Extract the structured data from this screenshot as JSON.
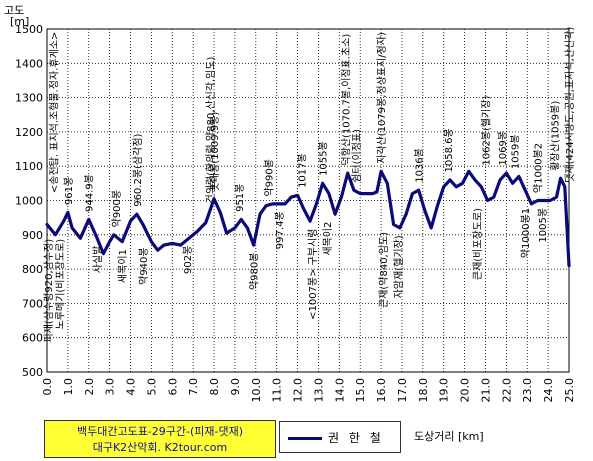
{
  "chart_data": {
    "type": "line",
    "title": "백두대간고도표-29구간-(피재-댓재)",
    "subtitle": "대구K2산악회.  K2tour.com",
    "xlabel": "도상거리 [km]",
    "ylabel": "고도",
    "yunit": "[m]",
    "ylim": [
      500,
      1500
    ],
    "xlim": [
      0,
      25
    ],
    "grid": true,
    "legend_position": "bottom-center",
    "line_color": "#0a0a78",
    "x_ticks": [
      "0.0",
      "1.0",
      "2.0",
      "3.0",
      "4.0",
      "5.0",
      "6.0",
      "7.0",
      "8.0",
      "9.0",
      "10.0",
      "11.0",
      "12.0",
      "13.0",
      "14.0",
      "15.0",
      "16.0",
      "17.0",
      "18.0",
      "19.0",
      "20.0",
      "21.0",
      "22.0",
      "23.0",
      "24.0",
      "25.0"
    ],
    "y_ticks": [
      "500",
      "600",
      "700",
      "800",
      "900",
      "1000",
      "1100",
      "1200",
      "1300",
      "1400",
      "1500"
    ],
    "series": [
      {
        "name": "권 한 철",
        "x": [
          0,
          0.4,
          0.8,
          1.0,
          1.2,
          1.6,
          2.0,
          2.4,
          2.7,
          3.0,
          3.2,
          3.6,
          4.0,
          4.3,
          4.6,
          5.0,
          5.3,
          5.6,
          6.0,
          6.4,
          6.8,
          7.2,
          7.6,
          7.8,
          8.0,
          8.3,
          8.6,
          9.0,
          9.3,
          9.6,
          9.9,
          10.2,
          10.5,
          10.8,
          11.0,
          11.4,
          11.7,
          12.0,
          12.3,
          12.6,
          12.9,
          13.2,
          13.5,
          13.8,
          14.1,
          14.4,
          14.7,
          15.0,
          15.3,
          15.6,
          15.8,
          16.0,
          16.3,
          16.6,
          16.9,
          17.2,
          17.5,
          17.8,
          18.1,
          18.4,
          18.7,
          19.0,
          19.3,
          19.6,
          19.9,
          20.2,
          20.5,
          20.8,
          21.1,
          21.4,
          21.7,
          22.0,
          22.3,
          22.6,
          22.9,
          23.2,
          23.5,
          23.8,
          24.1,
          24.4,
          24.6,
          24.8,
          25.0
        ],
        "values": [
          930,
          900,
          940,
          965,
          920,
          890,
          945,
          890,
          845,
          880,
          900,
          880,
          940,
          960,
          930,
          880,
          855,
          870,
          875,
          870,
          890,
          910,
          935,
          970,
          1005,
          965,
          905,
          920,
          945,
          920,
          870,
          960,
          985,
          990,
          990,
          990,
          1010,
          1015,
          975,
          940,
          990,
          1050,
          1020,
          960,
          1010,
          1080,
          1030,
          1020,
          1020,
          1020,
          1025,
          1085,
          1050,
          930,
          920,
          960,
          1020,
          1030,
          970,
          920,
          985,
          1040,
          1060,
          1040,
          1050,
          1085,
          1060,
          1040,
          1000,
          1010,
          1060,
          1080,
          1050,
          1070,
          1030,
          990,
          1000,
          1000,
          1000,
          1010,
          1065,
          1040,
          810
        ]
      }
    ],
    "annotations": [
      {
        "x": 0.05,
        "y": 900,
        "text": "피재(삼수령920,삼수정)",
        "side": "below"
      },
      {
        "x": 0.6,
        "y": 900,
        "text": "노루메기(비포장도로)",
        "side": "below"
      },
      {
        "x": 0.3,
        "y": 1010,
        "text": "<송전탑. 표지석.조형물.정자.휴게소>",
        "side": "above"
      },
      {
        "x": 1.0,
        "y": 975,
        "text": "961봉",
        "side": "above"
      },
      {
        "x": 2.0,
        "y": 955,
        "text": "944.9봉",
        "side": "above"
      },
      {
        "x": 2.4,
        "y": 880,
        "text": "사실발",
        "side": "below"
      },
      {
        "x": 3.3,
        "y": 910,
        "text": "약900봉",
        "side": "above"
      },
      {
        "x": 3.6,
        "y": 870,
        "text": "새목이1",
        "side": "below"
      },
      {
        "x": 4.3,
        "y": 970,
        "text": "960.2봉(삼각점)",
        "side": "above"
      },
      {
        "x": 4.6,
        "y": 875,
        "text": "약940봉",
        "side": "below"
      },
      {
        "x": 6.7,
        "y": 880,
        "text": "902봉",
        "side": "below"
      },
      {
        "x": 7.8,
        "y": 980,
        "text": "건의령(한의령,약880,산신각,임도)",
        "side": "above"
      },
      {
        "x": 8.0,
        "y": 1015,
        "text": "푯대봉(1009.9봉)",
        "side": "above"
      },
      {
        "x": 9.2,
        "y": 955,
        "text": "951봉",
        "side": "above"
      },
      {
        "x": 9.9,
        "y": 860,
        "text": "약980봉",
        "side": "below"
      },
      {
        "x": 10.6,
        "y": 1000,
        "text": "약990봉",
        "side": "above"
      },
      {
        "x": 11.1,
        "y": 980,
        "text": "997.4봉",
        "side": "below"
      },
      {
        "x": 12.2,
        "y": 1025,
        "text": "1017봉",
        "side": "above"
      },
      {
        "x": 12.7,
        "y": 930,
        "text": "<1007봉> 구부시령",
        "side": "below"
      },
      {
        "x": 13.2,
        "y": 1060,
        "text": "1055봉",
        "side": "above"
      },
      {
        "x": 13.4,
        "y": 950,
        "text": "새목이2",
        "side": "below"
      },
      {
        "x": 14.3,
        "y": 1090,
        "text": "덕항산(1070.7봉,이정표.초소)",
        "side": "above"
      },
      {
        "x": 14.8,
        "y": 1040,
        "text": "쉼터(이정표)",
        "side": "above"
      },
      {
        "x": 16.0,
        "y": 1095,
        "text": "지각산(1079봉,정상표지/정자)",
        "side": "above"
      },
      {
        "x": 16.1,
        "y": 920,
        "text": "큰재(약840,임도)",
        "side": "below"
      },
      {
        "x": 16.8,
        "y": 910,
        "text": "자암재(헬기장)",
        "side": "below"
      },
      {
        "x": 17.8,
        "y": 1040,
        "text": "1036봉",
        "side": "above"
      },
      {
        "x": 19.2,
        "y": 1070,
        "text": "1058.6봉",
        "side": "above"
      },
      {
        "x": 20.6,
        "y": 990,
        "text": "큰재(비포장도로)",
        "side": "below"
      },
      {
        "x": 21.0,
        "y": 1090,
        "text": "1062봉(헬기장)",
        "side": "above"
      },
      {
        "x": 21.8,
        "y": 1090,
        "text": "1069봉",
        "side": "above"
      },
      {
        "x": 22.4,
        "y": 1080,
        "text": "1059봉",
        "side": "above"
      },
      {
        "x": 22.9,
        "y": 990,
        "text": "약1000봉1",
        "side": "below"
      },
      {
        "x": 23.5,
        "y": 1010,
        "text": "약1000봉2",
        "side": "above"
      },
      {
        "x": 23.7,
        "y": 990,
        "text": "1005봉",
        "side": "below"
      },
      {
        "x": 24.3,
        "y": 1075,
        "text": "황장산(1059봉)",
        "side": "above"
      },
      {
        "x": 25.0,
        "y": 1040,
        "text": "댓재(424시방도,공원,표지석,산신각)",
        "side": "above"
      }
    ]
  }
}
